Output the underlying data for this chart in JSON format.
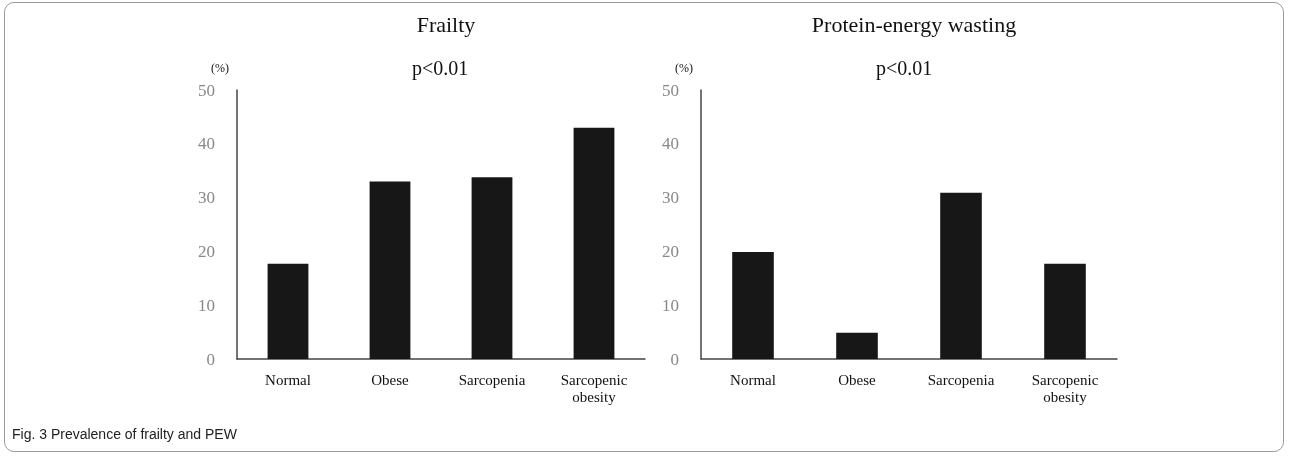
{
  "chart_data": [
    {
      "type": "bar",
      "title": "Frailty",
      "ylabel": "(%)",
      "categories": [
        "Normal",
        "Obese",
        "Sarcopenia",
        "Sarcopenic\nobesity"
      ],
      "values": [
        17.7,
        33.0,
        33.8,
        43.0
      ],
      "color": "#171717",
      "ylim": [
        0,
        50
      ],
      "yticks": [
        0,
        10,
        20,
        30,
        40,
        50
      ],
      "grid": false,
      "annotations": [
        "p<0.01",
        "Fig. 3 Prevalence of frailty and PEW"
      ]
    },
    {
      "type": "bar",
      "title": "Protein-energy wasting",
      "ylabel": "(%)",
      "categories": [
        "Normal",
        "Obese",
        "Sarcopenia",
        "Sarcopenic\nobesity"
      ],
      "values": [
        19.9,
        4.9,
        30.9,
        17.7
      ],
      "color": "#171717",
      "ylim": [
        0,
        50
      ],
      "yticks": [
        0,
        10,
        20,
        30,
        40,
        50
      ],
      "grid": false,
      "annotations": [
        "p<0.01"
      ]
    }
  ]
}
